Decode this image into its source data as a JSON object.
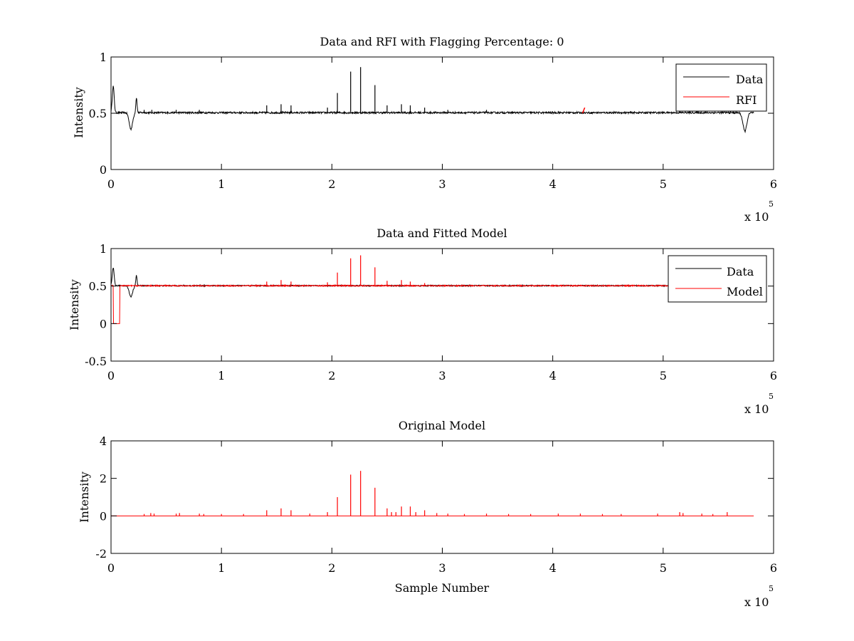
{
  "chart_data": [
    {
      "type": "line",
      "title": "Data and RFI with Flagging Percentage: 0",
      "xlabel": "",
      "ylabel": "Intensity",
      "xlim": [
        0,
        6
      ],
      "ylim": [
        0,
        1
      ],
      "xticks": [
        0,
        1,
        2,
        3,
        4,
        5,
        6
      ],
      "yticks": [
        0,
        0.5,
        1
      ],
      "x_exponent_label": "x 10",
      "x_exponent_power": "5",
      "legend_position": "top-right",
      "colors": {
        "Data": "#000000",
        "RFI": "#ff0000"
      },
      "baseline": 0.505,
      "noise": 0.008,
      "series": [
        {
          "name": "Data",
          "color": "#000000",
          "dips": [
            {
              "x": 0.02,
              "y": 0.74,
              "w": 0.012
            },
            {
              "x": 0.18,
              "y": 0.36,
              "w": 0.022
            },
            {
              "x": 0.23,
              "y": 0.64,
              "w": 0.008
            },
            {
              "x": 5.74,
              "y": 0.34,
              "w": 0.025
            }
          ],
          "spikes": [
            {
              "x": 0.3,
              "y": 0.53
            },
            {
              "x": 0.37,
              "y": 0.53
            },
            {
              "x": 0.59,
              "y": 0.53
            },
            {
              "x": 0.8,
              "y": 0.53
            },
            {
              "x": 1.41,
              "y": 0.57
            },
            {
              "x": 1.54,
              "y": 0.58
            },
            {
              "x": 1.63,
              "y": 0.57
            },
            {
              "x": 1.96,
              "y": 0.55
            },
            {
              "x": 2.05,
              "y": 0.68
            },
            {
              "x": 2.17,
              "y": 0.87
            },
            {
              "x": 2.26,
              "y": 0.91
            },
            {
              "x": 2.39,
              "y": 0.75
            },
            {
              "x": 2.5,
              "y": 0.57
            },
            {
              "x": 2.63,
              "y": 0.58
            },
            {
              "x": 2.71,
              "y": 0.57
            },
            {
              "x": 2.84,
              "y": 0.55
            },
            {
              "x": 3.05,
              "y": 0.53
            },
            {
              "x": 3.4,
              "y": 0.53
            },
            {
              "x": 4.05,
              "y": 0.52
            },
            {
              "x": 5.15,
              "y": 0.53
            }
          ],
          "x_end": 5.82
        },
        {
          "name": "RFI",
          "color": "#ff0000",
          "segment": {
            "x": [
              4.27,
              4.29
            ],
            "y": [
              0.5,
              0.55
            ]
          }
        }
      ]
    },
    {
      "type": "line",
      "title": "Data and Fitted Model",
      "xlabel": "",
      "ylabel": "Intensity",
      "xlim": [
        0,
        6
      ],
      "ylim": [
        -0.5,
        1
      ],
      "xticks": [
        0,
        1,
        2,
        3,
        4,
        5,
        6
      ],
      "yticks": [
        -0.5,
        0,
        0.5,
        1
      ],
      "x_exponent_label": "x 10",
      "x_exponent_power": "5",
      "legend_position": "top-right",
      "colors": {
        "Data": "#000000",
        "Model": "#ff0000"
      },
      "baseline": 0.505,
      "noise": 0.008,
      "series": [
        {
          "name": "Data",
          "color": "#000000",
          "dips": [
            {
              "x": 0.02,
              "y": 0.74,
              "w": 0.012
            },
            {
              "x": 0.18,
              "y": 0.36,
              "w": 0.022
            },
            {
              "x": 0.23,
              "y": 0.64,
              "w": 0.008
            }
          ],
          "spikes": [],
          "x_end": 5.82
        },
        {
          "name": "Model",
          "color": "#ff0000",
          "zero_region": [
            0.02,
            0.08
          ],
          "spikes": [
            {
              "x": 1.41,
              "y": 0.56
            },
            {
              "x": 1.54,
              "y": 0.58
            },
            {
              "x": 1.63,
              "y": 0.56
            },
            {
              "x": 1.96,
              "y": 0.55
            },
            {
              "x": 2.05,
              "y": 0.68
            },
            {
              "x": 2.17,
              "y": 0.87
            },
            {
              "x": 2.26,
              "y": 0.91
            },
            {
              "x": 2.39,
              "y": 0.75
            },
            {
              "x": 2.5,
              "y": 0.57
            },
            {
              "x": 2.63,
              "y": 0.58
            },
            {
              "x": 2.71,
              "y": 0.56
            },
            {
              "x": 2.84,
              "y": 0.54
            }
          ],
          "x_end": 5.82
        }
      ]
    },
    {
      "type": "line",
      "title": "Original Model",
      "xlabel": "Sample Number",
      "ylabel": "Intensity",
      "xlim": [
        0,
        6
      ],
      "ylim": [
        -2,
        4
      ],
      "xticks": [
        0,
        1,
        2,
        3,
        4,
        5,
        6
      ],
      "yticks": [
        -2,
        0,
        2,
        4
      ],
      "x_exponent_label": "x 10",
      "x_exponent_power": "5",
      "legend_position": "none",
      "series": [
        {
          "name": "",
          "color": "#ff0000",
          "baseline": 0,
          "spikes": [
            {
              "x": 0.3,
              "y": 0.1
            },
            {
              "x": 0.36,
              "y": 0.15
            },
            {
              "x": 0.39,
              "y": 0.12
            },
            {
              "x": 0.59,
              "y": 0.12
            },
            {
              "x": 0.62,
              "y": 0.15
            },
            {
              "x": 0.8,
              "y": 0.12
            },
            {
              "x": 0.84,
              "y": 0.1
            },
            {
              "x": 1.0,
              "y": 0.1
            },
            {
              "x": 1.2,
              "y": 0.1
            },
            {
              "x": 1.41,
              "y": 0.3
            },
            {
              "x": 1.54,
              "y": 0.4
            },
            {
              "x": 1.63,
              "y": 0.3
            },
            {
              "x": 1.8,
              "y": 0.12
            },
            {
              "x": 1.96,
              "y": 0.2
            },
            {
              "x": 2.05,
              "y": 1.0
            },
            {
              "x": 2.17,
              "y": 2.2
            },
            {
              "x": 2.26,
              "y": 2.4
            },
            {
              "x": 2.39,
              "y": 1.5
            },
            {
              "x": 2.5,
              "y": 0.4
            },
            {
              "x": 2.54,
              "y": 0.2
            },
            {
              "x": 2.58,
              "y": 0.2
            },
            {
              "x": 2.63,
              "y": 0.5
            },
            {
              "x": 2.71,
              "y": 0.5
            },
            {
              "x": 2.76,
              "y": 0.2
            },
            {
              "x": 2.84,
              "y": 0.3
            },
            {
              "x": 2.95,
              "y": 0.15
            },
            {
              "x": 3.05,
              "y": 0.12
            },
            {
              "x": 3.2,
              "y": 0.1
            },
            {
              "x": 3.4,
              "y": 0.12
            },
            {
              "x": 3.6,
              "y": 0.1
            },
            {
              "x": 3.8,
              "y": 0.1
            },
            {
              "x": 4.05,
              "y": 0.12
            },
            {
              "x": 4.25,
              "y": 0.12
            },
            {
              "x": 4.45,
              "y": 0.1
            },
            {
              "x": 4.62,
              "y": 0.1
            },
            {
              "x": 4.95,
              "y": 0.12
            },
            {
              "x": 5.15,
              "y": 0.2
            },
            {
              "x": 5.18,
              "y": 0.15
            },
            {
              "x": 5.35,
              "y": 0.12
            },
            {
              "x": 5.45,
              "y": 0.1
            },
            {
              "x": 5.58,
              "y": 0.2
            }
          ],
          "x_end": 5.82
        }
      ]
    }
  ]
}
